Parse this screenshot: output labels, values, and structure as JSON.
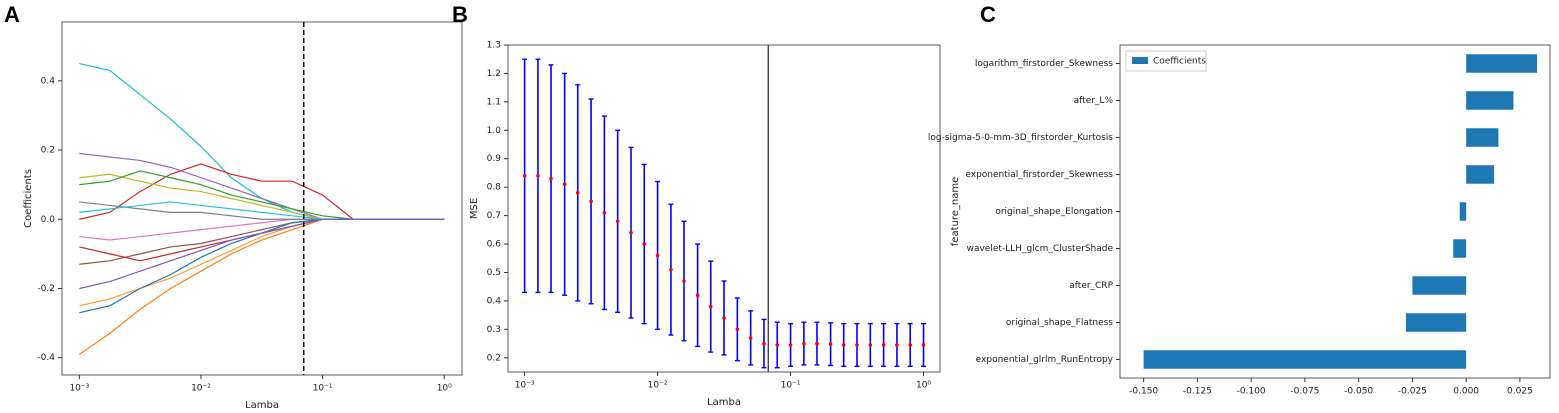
{
  "chart_data": [
    {
      "type": "line",
      "label": "A",
      "xlabel": "Lamba",
      "ylabel": "Coefficients",
      "xscale": "log",
      "xlim": [
        0.00072,
        1.4
      ],
      "ylim": [
        -0.45,
        0.57
      ],
      "xticks": [
        {
          "value": 0.001,
          "label": "10⁻³"
        },
        {
          "value": 0.01,
          "label": "10⁻²"
        },
        {
          "value": 0.1,
          "label": "10⁻¹"
        },
        {
          "value": 1,
          "label": "10⁰"
        }
      ],
      "yticks": [
        -0.4,
        -0.2,
        {
          "value": 0,
          "label": "0.0"
        },
        0.2,
        0.4
      ],
      "vline": 0.07,
      "vline_color": "#000000",
      "vline_style": "dashed",
      "x": [
        0.001,
        0.00178,
        0.00316,
        0.00562,
        0.01,
        0.0178,
        0.0316,
        0.0562,
        0.1,
        0.178,
        0.316,
        0.562,
        1
      ],
      "series": [
        {
          "color": "#17becf",
          "values": [
            0.45,
            0.43,
            0.36,
            0.29,
            0.21,
            0.12,
            0.06,
            0.02,
            0,
            0,
            0,
            0,
            0
          ]
        },
        {
          "color": "#d62728",
          "values": [
            0.0,
            0.02,
            0.08,
            0.13,
            0.16,
            0.13,
            0.11,
            0.11,
            0.07,
            0,
            0,
            0,
            0
          ]
        },
        {
          "color": "#9467bd",
          "values": [
            0.19,
            0.18,
            0.17,
            0.15,
            0.12,
            0.09,
            0.06,
            0.03,
            0,
            0,
            0,
            0,
            0
          ]
        },
        {
          "color": "#bcbd22",
          "values": [
            0.12,
            0.13,
            0.11,
            0.09,
            0.08,
            0.06,
            0.04,
            0.02,
            0,
            0,
            0,
            0,
            0
          ]
        },
        {
          "color": "#2ca02c",
          "values": [
            0.1,
            0.11,
            0.14,
            0.12,
            0.1,
            0.07,
            0.05,
            0.03,
            0.01,
            0,
            0,
            0,
            0
          ]
        },
        {
          "color": "#ff7f0e",
          "values": [
            -0.39,
            -0.33,
            -0.26,
            -0.2,
            -0.15,
            -0.1,
            -0.06,
            -0.03,
            0,
            0,
            0,
            0,
            0
          ]
        },
        {
          "color": "#ff9f2e",
          "values": [
            -0.25,
            -0.23,
            -0.2,
            -0.17,
            -0.13,
            -0.09,
            -0.05,
            -0.02,
            0,
            0,
            0,
            0,
            0
          ]
        },
        {
          "color": "#8c564b",
          "values": [
            -0.13,
            -0.12,
            -0.1,
            -0.08,
            -0.07,
            -0.05,
            -0.03,
            -0.01,
            0,
            0,
            0,
            0,
            0
          ]
        },
        {
          "color": "#1f77b4",
          "values": [
            -0.27,
            -0.25,
            -0.2,
            -0.16,
            -0.11,
            -0.07,
            -0.04,
            -0.01,
            0,
            0,
            0,
            0,
            0
          ]
        },
        {
          "color": "#e377c2",
          "values": [
            -0.05,
            -0.06,
            -0.05,
            -0.04,
            -0.03,
            -0.02,
            -0.01,
            0,
            0,
            0,
            0,
            0,
            0
          ]
        },
        {
          "color": "#7f7f7f",
          "values": [
            0.05,
            0.04,
            0.03,
            0.02,
            0.02,
            0.01,
            0,
            0,
            0,
            0,
            0,
            0,
            0
          ]
        },
        {
          "color": "#c62828",
          "values": [
            -0.08,
            -0.1,
            -0.12,
            -0.1,
            -0.08,
            -0.06,
            -0.04,
            -0.02,
            0,
            0,
            0,
            0,
            0
          ]
        },
        {
          "color": "#26c6da",
          "values": [
            0.02,
            0.03,
            0.04,
            0.05,
            0.04,
            0.03,
            0.02,
            0.01,
            0,
            0,
            0,
            0,
            0
          ]
        },
        {
          "color": "#7e57c2",
          "values": [
            -0.2,
            -0.18,
            -0.15,
            -0.12,
            -0.09,
            -0.06,
            -0.04,
            -0.02,
            0,
            0,
            0,
            0,
            0
          ]
        }
      ]
    },
    {
      "type": "errorbar",
      "label": "B",
      "xlabel": "Lamba",
      "ylabel": "MSE",
      "xscale": "log",
      "xlim": [
        0.00075,
        1.33
      ],
      "ylim": [
        0.15,
        1.3
      ],
      "xticks": [
        {
          "value": 0.001,
          "label": "10⁻³"
        },
        {
          "value": 0.01,
          "label": "10⁻²"
        },
        {
          "value": 0.1,
          "label": "10⁻¹"
        },
        {
          "value": 1,
          "label": "10⁰"
        }
      ],
      "yticks": [
        0.2,
        0.3,
        0.4,
        0.5,
        0.6,
        0.7,
        0.8,
        0.9,
        {
          "value": 1,
          "label": "1.0"
        },
        1.1,
        1.2,
        1.3
      ],
      "vline": 0.068,
      "vline_color": "#444444",
      "vline_style": "solid",
      "color": "#0000ff",
      "marker_color": "#ff0000",
      "x": [
        0.001,
        0.00126,
        0.00158,
        0.002,
        0.00251,
        0.00316,
        0.00398,
        0.00501,
        0.00631,
        0.00794,
        0.01,
        0.0126,
        0.0158,
        0.02,
        0.0251,
        0.0316,
        0.0398,
        0.0501,
        0.0631,
        0.0794,
        0.1,
        0.126,
        0.158,
        0.2,
        0.251,
        0.316,
        0.398,
        0.501,
        0.631,
        0.794,
        1
      ],
      "values": [
        0.84,
        0.84,
        0.83,
        0.81,
        0.78,
        0.75,
        0.71,
        0.68,
        0.64,
        0.6,
        0.56,
        0.51,
        0.47,
        0.42,
        0.38,
        0.34,
        0.3,
        0.27,
        0.25,
        0.245,
        0.245,
        0.25,
        0.25,
        0.248,
        0.245,
        0.245,
        0.245,
        0.245,
        0.245,
        0.245,
        0.245
      ],
      "errors": [
        0.41,
        0.41,
        0.4,
        0.39,
        0.38,
        0.36,
        0.34,
        0.32,
        0.3,
        0.28,
        0.26,
        0.23,
        0.21,
        0.18,
        0.16,
        0.13,
        0.11,
        0.095,
        0.085,
        0.08,
        0.075,
        0.075,
        0.075,
        0.075,
        0.075,
        0.075,
        0.075,
        0.075,
        0.075,
        0.075,
        0.075
      ]
    },
    {
      "type": "hbar",
      "label": "C",
      "ylabel": "feature_name",
      "legend": "upper left",
      "xlim": [
        -0.161,
        0.039
      ],
      "xticks": [
        {
          "value": -0.15,
          "label": "-0.150"
        },
        -0.125,
        {
          "value": -0.1,
          "label": "-0.100"
        },
        -0.075,
        {
          "value": -0.05,
          "label": "-0.050"
        },
        -0.025,
        {
          "value": 0,
          "label": "0.000"
        },
        0.025
      ],
      "categories": [
        "exponential_glrlm_RunEntropy",
        "original_shape_Flatness",
        "after_CRP",
        "wavelet-LLH_glcm_ClusterShade",
        "original_shape_Elongation",
        "exponential_firstorder_Skewness",
        "log-sigma-5-0-mm-3D_firstorder_Kurtosis",
        "after_L%",
        "logarithm_firstorder_Skewness"
      ],
      "series": [
        {
          "name": "Coefficients",
          "color": "#1f77b4",
          "values": [
            -0.15,
            -0.028,
            -0.025,
            -0.006,
            -0.003,
            0.013,
            0.015,
            0.022,
            0.033
          ]
        }
      ]
    }
  ]
}
